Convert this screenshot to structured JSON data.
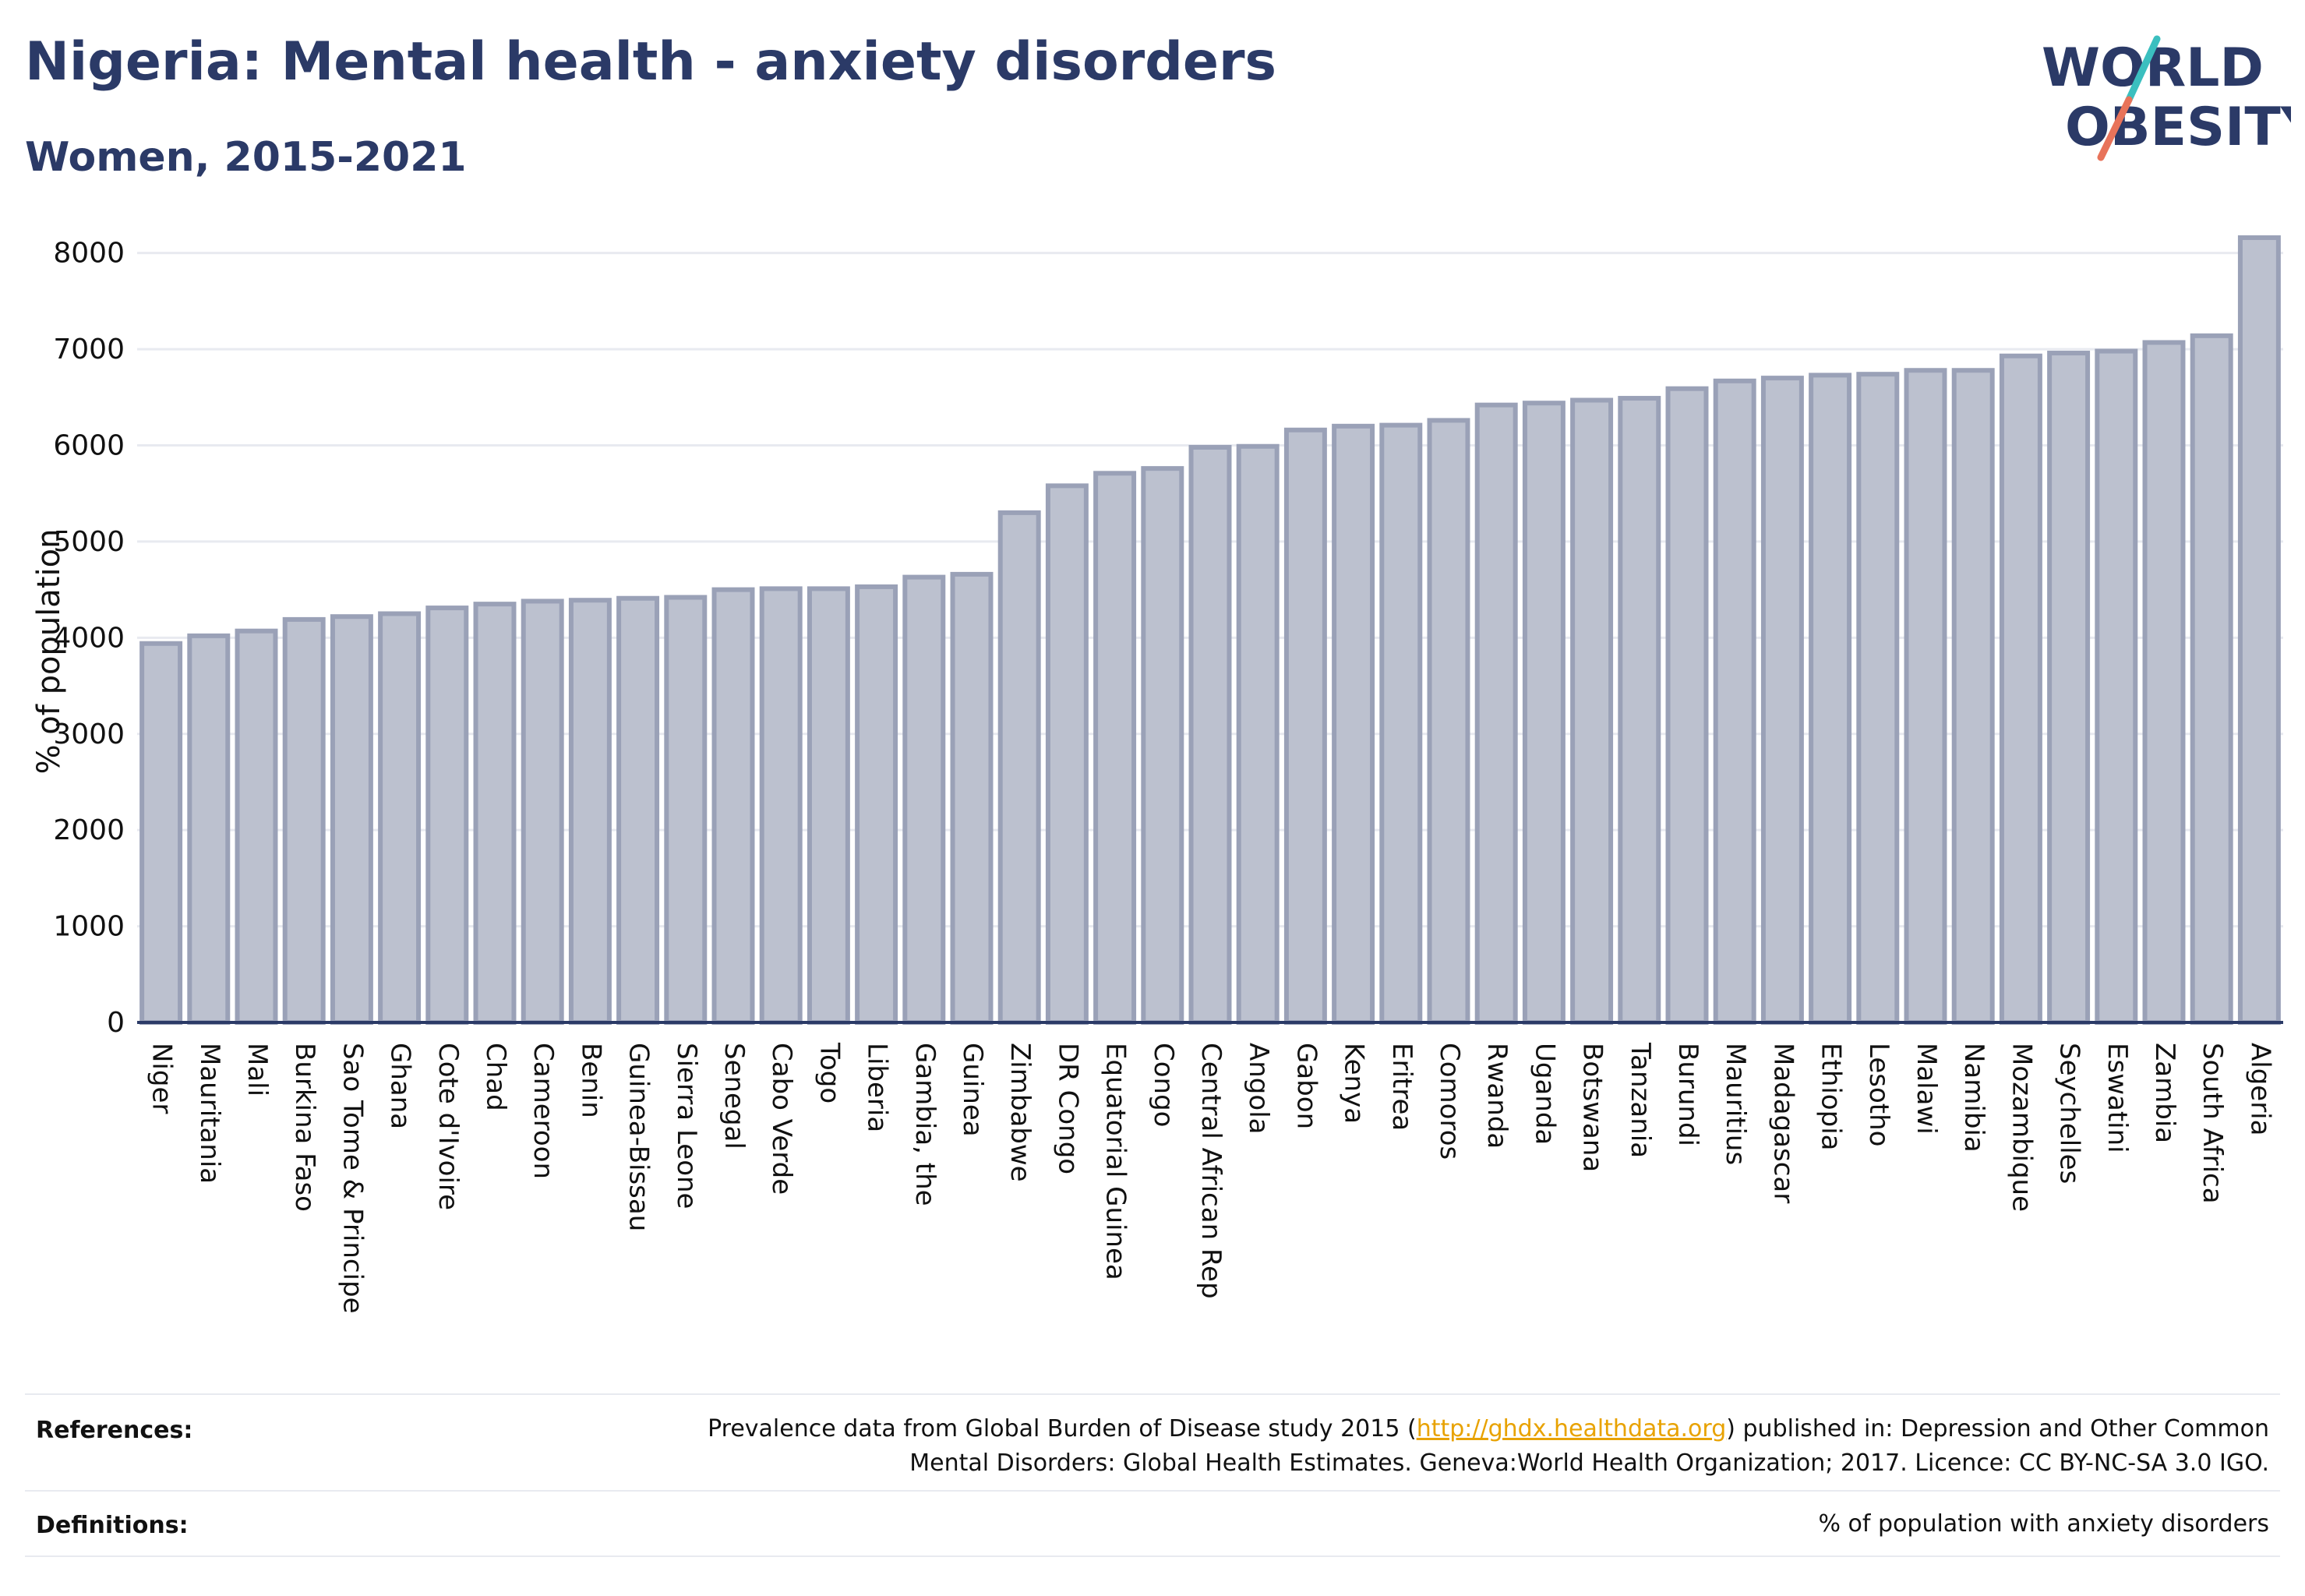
{
  "header": {
    "title": "Nigeria: Mental health - anxiety disorders",
    "subtitle": "Women, 2015-2021"
  },
  "logo": {
    "line1": "WORLD",
    "line2": "OBESITY",
    "accent1": "#3bbfbf",
    "accent2": "#e8735a",
    "text_color": "#2b3a67"
  },
  "colors": {
    "bar_fill": "#bcc1cf",
    "bar_stroke": "#9aa1b7",
    "grid": "#e8eaf0",
    "axis": "#2b3a67"
  },
  "chart_data": {
    "type": "bar",
    "ylabel": "% of population",
    "xlabel": "",
    "ylim": [
      0,
      8200
    ],
    "yticks": [
      0,
      1000,
      2000,
      3000,
      4000,
      5000,
      6000,
      7000,
      8000
    ],
    "grid": true,
    "categories": [
      "Niger",
      "Mauritania",
      "Mali",
      "Burkina Faso",
      "Sao Tome & Principe",
      "Ghana",
      "Cote d'Ivoire",
      "Chad",
      "Cameroon",
      "Benin",
      "Guinea-Bissau",
      "Sierra Leone",
      "Senegal",
      "Cabo Verde",
      "Togo",
      "Liberia",
      "Gambia, the",
      "Guinea",
      "Zimbabwe",
      "DR Congo",
      "Equatorial Guinea",
      "Congo",
      "Central African Rep",
      "Angola",
      "Gabon",
      "Kenya",
      "Eritrea",
      "Comoros",
      "Rwanda",
      "Uganda",
      "Botswana",
      "Tanzania",
      "Burundi",
      "Mauritius",
      "Madagascar",
      "Ethiopia",
      "Lesotho",
      "Malawi",
      "Namibia",
      "Mozambique",
      "Seychelles",
      "Eswatini",
      "Zambia",
      "South Africa",
      "Algeria"
    ],
    "values": [
      3940,
      4020,
      4070,
      4190,
      4220,
      4250,
      4310,
      4350,
      4380,
      4390,
      4410,
      4420,
      4500,
      4510,
      4510,
      4530,
      4630,
      4660,
      5300,
      5580,
      5710,
      5760,
      5980,
      5990,
      6160,
      6200,
      6210,
      6260,
      6420,
      6440,
      6470,
      6490,
      6590,
      6670,
      6700,
      6730,
      6740,
      6780,
      6780,
      6930,
      6960,
      6980,
      7070,
      7140,
      8160
    ]
  },
  "references": {
    "label": "References:",
    "line1_pre": "Prevalence data from Global Burden of Disease study 2015 (",
    "link": "http://ghdx.healthdata.org",
    "line1_post": ") published in: Depression and Other Common",
    "line2": "Mental Disorders: Global Health Estimates. Geneva:World Health Organization; 2017. Licence: CC BY-NC-SA 3.0 IGO."
  },
  "definitions": {
    "label": "Definitions:",
    "text": "% of population with anxiety disorders"
  }
}
